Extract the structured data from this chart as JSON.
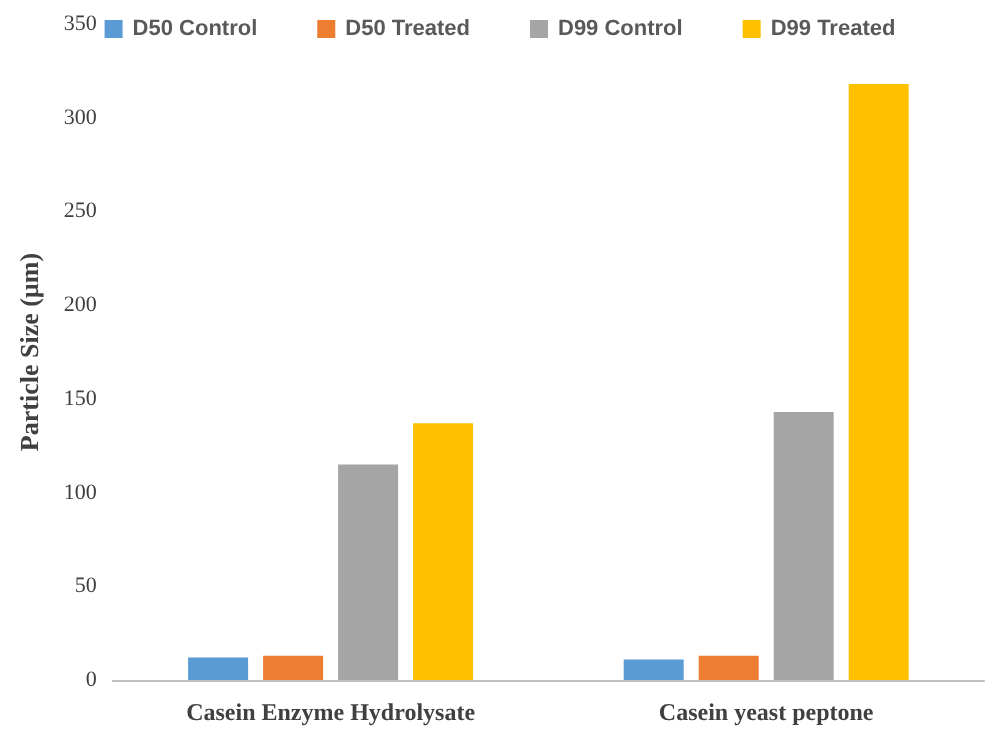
{
  "chart_data": {
    "type": "bar",
    "ylabel": "Particle Size (µm)",
    "categories": [
      "Casein Enzyme Hydrolysate",
      "Casein yeast peptone"
    ],
    "series": [
      {
        "name": "D50 Control",
        "color": "#5b9bd5",
        "values": [
          12,
          11
        ]
      },
      {
        "name": "D50 Treated",
        "color": "#ed7d31",
        "values": [
          13,
          13
        ]
      },
      {
        "name": "D99 Control",
        "color": "#a5a5a5",
        "values": [
          115,
          143
        ]
      },
      {
        "name": "D99 Treated",
        "color": "#ffc000",
        "values": [
          137,
          318
        ]
      }
    ],
    "ylim": [
      0,
      350
    ],
    "yticks": [
      0,
      50,
      100,
      150,
      200,
      250,
      300,
      350
    ],
    "grid": false,
    "legend": "top"
  }
}
